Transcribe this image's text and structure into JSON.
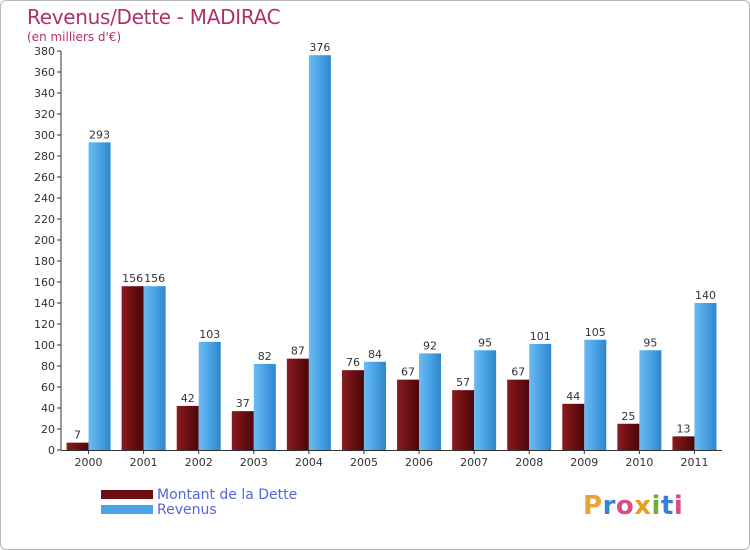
{
  "title": "Revenus/Dette - MADIRAC",
  "subtitle": "(en milliers d'€)",
  "brand": {
    "name": "Proxiti",
    "letter_colors": [
      "#e8a33a",
      "#3d7fd6",
      "#d94c8a",
      "#e0a020",
      "#6cb13b",
      "#3d7fd6",
      "#d94c8a"
    ]
  },
  "legend": [
    {
      "label": "Montant de la Dette",
      "color": "#6b0f12"
    },
    {
      "label": "Revenus",
      "color": "#4aa3e6"
    }
  ],
  "chart_data": {
    "type": "bar",
    "title": "Revenus/Dette - MADIRAC",
    "ylabel": "(en milliers d'€)",
    "xlabel": "",
    "categories": [
      "2000",
      "2001",
      "2002",
      "2003",
      "2004",
      "2005",
      "2006",
      "2007",
      "2008",
      "2009",
      "2010",
      "2011"
    ],
    "series": [
      {
        "name": "Montant de la Dette",
        "color": "#6b0f12",
        "values": [
          7,
          156,
          42,
          37,
          87,
          76,
          67,
          57,
          67,
          44,
          25,
          13
        ]
      },
      {
        "name": "Revenus",
        "color": "#4aa3e6",
        "values": [
          293,
          156,
          103,
          82,
          376,
          84,
          92,
          95,
          101,
          105,
          95,
          140
        ]
      }
    ],
    "ylim": [
      0,
      380
    ],
    "ytick_step": 20,
    "grid": false,
    "legend_position": "bottom-left"
  }
}
